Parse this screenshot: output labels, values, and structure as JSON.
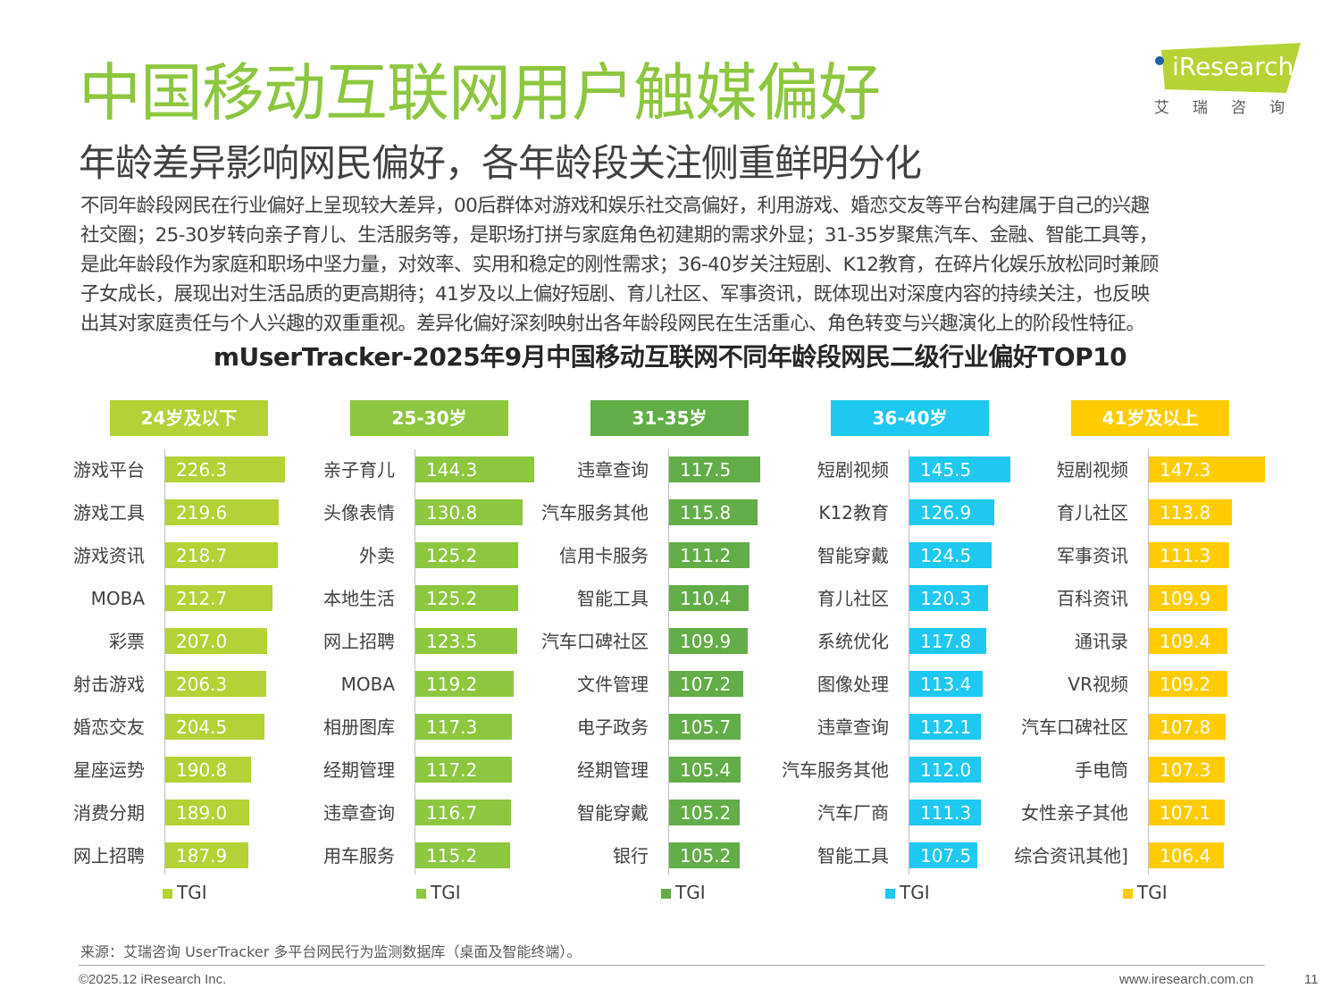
{
  "header": {
    "title": "中国移动互联网用户触媒偏好",
    "subtitle": "年龄差异影响网民偏好，各年龄段关注侧重鲜明分化",
    "body_lines": [
      "不同年龄段网民在行业偏好上呈现较大差异，00后群体对游戏和娱乐社交高偏好，利用游戏、婚恋交友等平台构建属于自己的兴趣",
      "社交圈；25-30岁转向亲子育儿、生活服务等，是职场打拼与家庭角色初建期的需求外显；31-35岁聚焦汽车、金融、智能工具等，",
      "是此年龄段作为家庭和职场中坚力量，对效率、实用和稳定的刚性需求；36-40岁关注短剧、K12教育，在碎片化娱乐放松同时兼顾",
      "子女成长，展现出对生活品质的更高期待；41岁及以上偏好短剧、育儿社区、军事资讯，既体现出对深度内容的持续关注，也反映",
      "出其对家庭责任与个人兴趣的双重重视。差异化偏好深刻映射出各年龄段网民在生活重心、角色转变与兴趣演化上的阶段性特征。"
    ]
  },
  "logo": {
    "text": "iResearch",
    "cn": "艾瑞咨询",
    "color": "#b5d334",
    "dot_color": "#1f5fa8"
  },
  "chart_data": {
    "type": "bar",
    "orientation": "horizontal",
    "title": "mUserTracker-2025年9月中国移动互联网不同年龄段网民二级行业偏好TOP10",
    "panels": [
      {
        "name": "24岁及以下",
        "color": "#b2d235",
        "legend": "TGI",
        "xlim": [
          101,
          241
        ],
        "categories": [
          "游戏平台",
          "游戏工具",
          "游戏资讯",
          "MOBA",
          "彩票",
          "射击游戏",
          "婚恋交友",
          "星座运势",
          "消费分期",
          "网上招聘"
        ],
        "values": [
          "226.3",
          "219.6",
          "218.7",
          "212.7",
          "207.0",
          "206.3",
          "204.5",
          "190.8",
          "189.0",
          "187.9"
        ]
      },
      {
        "name": "25-30岁",
        "color": "#8dc63f",
        "legend": "TGI",
        "xlim": [
          0,
          163
        ],
        "categories": [
          "亲子育儿",
          "头像表情",
          "外卖",
          "本地生活",
          "网上招聘",
          "MOBA",
          "相册图库",
          "经期管理",
          "违章查询",
          "用车服务"
        ],
        "values": [
          "144.3",
          "130.8",
          "125.2",
          "125.2",
          "123.5",
          "119.2",
          "117.3",
          "117.2",
          "116.7",
          "115.2"
        ]
      },
      {
        "name": "31-35岁",
        "color": "#62ad47",
        "legend": "TGI",
        "xlim": [
          63,
          143
        ],
        "categories": [
          "违章查询",
          "汽车服务其他",
          "信用卡服务",
          "智能工具",
          "汽车口碑社区",
          "文件管理",
          "电子政务",
          "经期管理",
          "智能穿戴",
          "银行"
        ],
        "values": [
          "117.5",
          "115.8",
          "111.2",
          "110.4",
          "109.9",
          "107.2",
          "105.7",
          "105.4",
          "105.2",
          "105.2"
        ]
      },
      {
        "name": "36-40岁",
        "color": "#1ec8f0",
        "legend": "TGI",
        "xlim": [
          29,
          184
        ],
        "categories": [
          "短剧视频",
          "K12教育",
          "智能穿戴",
          "育儿社区",
          "系统优化",
          "图像处理",
          "违章查询",
          "汽车服务其他",
          "汽车厂商",
          "智能工具"
        ],
        "values": [
          "145.5",
          "126.9",
          "124.5",
          "120.3",
          "117.8",
          "113.4",
          "112.1",
          "112.0",
          "111.3",
          "107.5"
        ]
      },
      {
        "name": "41岁及以上",
        "color": "#ffcc00",
        "legend": "TGI",
        "xlim": [
          31,
          165
        ],
        "categories": [
          "短剧视频",
          "育儿社区",
          "军事资讯",
          "百科资讯",
          "通讯录",
          "VR视频",
          "汽车口碑社区",
          "手电筒",
          "女性亲子其他",
          "综合资讯其他]"
        ],
        "values": [
          "147.3",
          "113.8",
          "111.3",
          "109.9",
          "109.4",
          "109.2",
          "107.8",
          "107.3",
          "107.1",
          "106.4"
        ]
      }
    ]
  },
  "footer": {
    "source": "来源：艾瑞咨询 UserTracker 多平台网民行为监测数据库（桌面及智能终端）。",
    "copyright": "©2025.12 iResearch Inc.",
    "website": "www.iresearch.com.cn",
    "page_number": "11"
  }
}
